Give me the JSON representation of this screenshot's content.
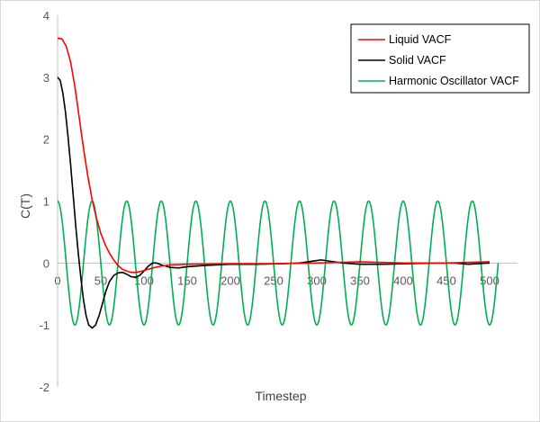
{
  "chart_data": {
    "type": "line",
    "title": "",
    "xlabel": "Timestep",
    "ylabel": "C(T)",
    "xlim": [
      0,
      500
    ],
    "ylim": [
      -2,
      4
    ],
    "x_ticks": [
      "0",
      "50",
      "100",
      "150",
      "200",
      "250",
      "300",
      "350",
      "400",
      "450",
      "500"
    ],
    "y_ticks": [
      "4",
      "3",
      "2",
      "1",
      "0",
      "-1",
      "-2"
    ],
    "grid": false,
    "legend_position": "top-right",
    "series": [
      {
        "name": "Liquid VACF",
        "color": "#ff0000",
        "points": [
          [
            0,
            3.63
          ],
          [
            5,
            3.62
          ],
          [
            10,
            3.5
          ],
          [
            15,
            3.25
          ],
          [
            20,
            2.85
          ],
          [
            25,
            2.35
          ],
          [
            30,
            1.85
          ],
          [
            35,
            1.4
          ],
          [
            40,
            1.02
          ],
          [
            45,
            0.72
          ],
          [
            50,
            0.48
          ],
          [
            55,
            0.3
          ],
          [
            60,
            0.16
          ],
          [
            65,
            0.05
          ],
          [
            70,
            -0.04
          ],
          [
            75,
            -0.1
          ],
          [
            80,
            -0.13
          ],
          [
            85,
            -0.15
          ],
          [
            90,
            -0.15
          ],
          [
            95,
            -0.14
          ],
          [
            100,
            -0.12
          ],
          [
            110,
            -0.08
          ],
          [
            120,
            -0.05
          ],
          [
            130,
            -0.03
          ],
          [
            150,
            -0.02
          ],
          [
            200,
            -0.01
          ],
          [
            250,
            -0.01
          ],
          [
            300,
            0.0
          ],
          [
            350,
            0.02
          ],
          [
            400,
            0.0
          ],
          [
            450,
            0.0
          ],
          [
            500,
            0.02
          ]
        ]
      },
      {
        "name": "Solid VACF",
        "color": "#000000",
        "points": [
          [
            0,
            3.0
          ],
          [
            3,
            2.95
          ],
          [
            6,
            2.75
          ],
          [
            9,
            2.45
          ],
          [
            12,
            2.05
          ],
          [
            15,
            1.6
          ],
          [
            18,
            1.1
          ],
          [
            21,
            0.6
          ],
          [
            24,
            0.15
          ],
          [
            27,
            -0.25
          ],
          [
            30,
            -0.6
          ],
          [
            33,
            -0.85
          ],
          [
            36,
            -1.0
          ],
          [
            40,
            -1.05
          ],
          [
            44,
            -1.0
          ],
          [
            48,
            -0.85
          ],
          [
            52,
            -0.65
          ],
          [
            56,
            -0.45
          ],
          [
            60,
            -0.3
          ],
          [
            65,
            -0.2
          ],
          [
            70,
            -0.16
          ],
          [
            75,
            -0.15
          ],
          [
            80,
            -0.18
          ],
          [
            85,
            -0.22
          ],
          [
            90,
            -0.23
          ],
          [
            95,
            -0.2
          ],
          [
            100,
            -0.13
          ],
          [
            105,
            -0.05
          ],
          [
            110,
            0.0
          ],
          [
            115,
            0.0
          ],
          [
            120,
            -0.03
          ],
          [
            130,
            -0.07
          ],
          [
            140,
            -0.08
          ],
          [
            150,
            -0.06
          ],
          [
            170,
            -0.04
          ],
          [
            200,
            -0.02
          ],
          [
            230,
            -0.02
          ],
          [
            260,
            -0.01
          ],
          [
            280,
            0.0
          ],
          [
            290,
            0.02
          ],
          [
            300,
            0.04
          ],
          [
            305,
            0.05
          ],
          [
            315,
            0.03
          ],
          [
            330,
            0.0
          ],
          [
            350,
            -0.02
          ],
          [
            380,
            -0.02
          ],
          [
            400,
            -0.01
          ],
          [
            440,
            0.0
          ],
          [
            460,
            0.0
          ],
          [
            475,
            -0.02
          ],
          [
            500,
            0.0
          ]
        ]
      },
      {
        "name": "Harmonic Oscillator VACF",
        "color": "#00b050",
        "period": 40,
        "amplitude": 1,
        "x_range": [
          0,
          510
        ]
      }
    ]
  }
}
